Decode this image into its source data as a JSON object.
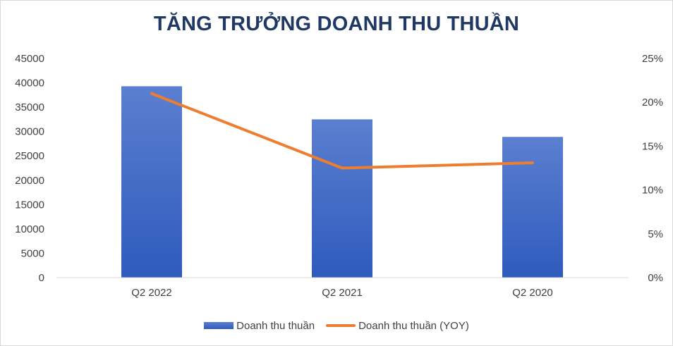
{
  "chart_data": {
    "type": "bar",
    "title": "TĂNG TRƯỞNG DOANH THU THUẦN",
    "categories": [
      "Q2 2022",
      "Q2 2021",
      "Q2 2020"
    ],
    "series": [
      {
        "name": "Doanh thu thuần",
        "type": "bar",
        "axis": "left",
        "values": [
          39300,
          32500,
          28900
        ]
      },
      {
        "name": "Doanh thu thuần (YOY)",
        "type": "line",
        "axis": "right",
        "values": [
          0.21,
          0.125,
          0.131
        ]
      }
    ],
    "y_left": {
      "ylim": [
        0,
        45000
      ],
      "ticks": [
        "45000",
        "40000",
        "35000",
        "30000",
        "25000",
        "20000",
        "15000",
        "10000",
        "5000",
        "0"
      ]
    },
    "y_right": {
      "ylim": [
        0,
        0.25
      ],
      "ticks": [
        "25%",
        "20%",
        "15%",
        "10%",
        "5%",
        "0%"
      ]
    },
    "grid": false,
    "legend": "bottom",
    "colors": {
      "bar_top": "#5b7fd0",
      "bar_bottom": "#2e5bbd",
      "line": "#ed7d31",
      "title": "#203864",
      "axis": "#d9d9d9",
      "text": "#404040"
    }
  }
}
